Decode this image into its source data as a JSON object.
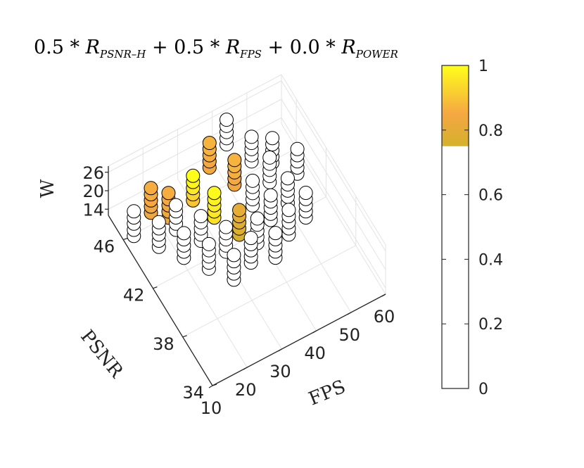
{
  "chart_data": {
    "type": "scatter",
    "title": {
      "parts": [
        {
          "coef": "0.5",
          "op": "*",
          "sym": "R",
          "sub": "PSNR–H"
        },
        {
          "coef": "0.5",
          "op": "*",
          "sym": "R",
          "sub": "FPS"
        },
        {
          "coef": "0.0",
          "op": "*",
          "sym": "R",
          "sub": "POWER"
        }
      ],
      "plus": "+"
    },
    "axes": {
      "x": {
        "label": "FPS",
        "range": [
          10,
          60
        ],
        "ticks": [
          10,
          20,
          30,
          40,
          50,
          60
        ]
      },
      "y": {
        "label": "PSNR",
        "range": [
          34,
          48
        ],
        "ticks": [
          34,
          38,
          42,
          46
        ]
      },
      "z": {
        "label": "W",
        "range": [
          12,
          28
        ],
        "ticks": [
          14,
          20,
          26
        ]
      }
    },
    "grid": true,
    "colorbar": {
      "location": "right",
      "range": [
        0,
        1
      ],
      "ticks": [
        "0",
        "0.2",
        "0.4",
        "0.6",
        "0.8",
        "1"
      ],
      "threshold": 0.75,
      "colors": {
        "low": "#ffffff",
        "mid": "#f5a742",
        "high": "#ffff1a",
        "floor": "#d4b12c"
      }
    },
    "marker": {
      "edge": "#000000",
      "fill_default": "#ffffff"
    },
    "columns": [
      {
        "fps": 12,
        "psnr": 45.5,
        "w": [
          14,
          16,
          18,
          20,
          22
        ],
        "score": [
          0.5,
          0.5,
          0.5,
          0.5,
          0.5
        ]
      },
      {
        "fps": 16,
        "psnr": 44.0,
        "w": [
          14,
          16,
          18,
          20,
          22
        ],
        "score": [
          0.5,
          0.5,
          0.5,
          0.5,
          0.5
        ]
      },
      {
        "fps": 20,
        "psnr": 42.5,
        "w": [
          14,
          16,
          18,
          20,
          22
        ],
        "score": [
          0.5,
          0.5,
          0.5,
          0.5,
          0.5
        ]
      },
      {
        "fps": 24,
        "psnr": 41.0,
        "w": [
          14,
          16,
          18,
          20,
          22
        ],
        "score": [
          0.5,
          0.5,
          0.5,
          0.5,
          0.5
        ]
      },
      {
        "fps": 28,
        "psnr": 39.5,
        "w": [
          14,
          16,
          18,
          20,
          22
        ],
        "score": [
          0.5,
          0.5,
          0.5,
          0.5,
          0.5
        ]
      },
      {
        "fps": 18,
        "psnr": 46.0,
        "w": [
          16,
          18,
          20,
          22,
          24
        ],
        "score": [
          0.83,
          0.84,
          0.85,
          0.86,
          0.86
        ]
      },
      {
        "fps": 22,
        "psnr": 44.5,
        "w": [
          14,
          16,
          18,
          20,
          22
        ],
        "score": [
          0.5,
          0.5,
          0.5,
          0.5,
          0.5
        ]
      },
      {
        "fps": 26,
        "psnr": 43.0,
        "w": [
          14,
          16,
          18,
          20,
          22
        ],
        "score": [
          0.5,
          0.5,
          0.5,
          0.5,
          0.5
        ]
      },
      {
        "fps": 30,
        "psnr": 41.5,
        "w": [
          14,
          16,
          18,
          20,
          22
        ],
        "score": [
          0.5,
          0.5,
          0.5,
          0.5,
          0.5
        ]
      },
      {
        "fps": 34,
        "psnr": 40.0,
        "w": [
          14,
          16,
          18,
          20,
          22
        ],
        "score": [
          0.5,
          0.5,
          0.5,
          0.5,
          0.5
        ]
      },
      {
        "fps": 22,
        "psnr": 45.5,
        "w": [
          14,
          16,
          18,
          20,
          22
        ],
        "score": [
          0.82,
          0.83,
          0.84,
          0.85,
          0.86
        ]
      },
      {
        "fps": 28,
        "psnr": 45.0,
        "w": [
          18,
          20,
          22,
          24,
          26
        ],
        "score": [
          0.9,
          0.93,
          0.96,
          0.98,
          1.0
        ]
      },
      {
        "fps": 32,
        "psnr": 44.0,
        "w": [
          14,
          16,
          18,
          20,
          22
        ],
        "score": [
          0.95,
          0.96,
          0.97,
          0.98,
          0.99
        ]
      },
      {
        "fps": 36,
        "psnr": 42.5,
        "w": [
          12,
          14,
          16,
          18,
          20
        ],
        "score": [
          0.76,
          0.77,
          0.78,
          0.79,
          0.8
        ]
      },
      {
        "fps": 38,
        "psnr": 41.0,
        "w": [
          14,
          16,
          18,
          20,
          22
        ],
        "score": [
          0.5,
          0.5,
          0.5,
          0.5,
          0.5
        ]
      },
      {
        "fps": 40,
        "psnr": 39.5,
        "w": [
          14,
          16,
          18,
          20,
          22
        ],
        "score": [
          0.5,
          0.5,
          0.5,
          0.5,
          0.5
        ]
      },
      {
        "fps": 36,
        "psnr": 46.5,
        "w": [
          18,
          20,
          22,
          24,
          26
        ],
        "score": [
          0.84,
          0.85,
          0.86,
          0.87,
          0.87
        ]
      },
      {
        "fps": 40,
        "psnr": 45.0,
        "w": [
          16,
          18,
          20,
          22,
          24
        ],
        "score": [
          0.84,
          0.85,
          0.86,
          0.87,
          0.87
        ]
      },
      {
        "fps": 42,
        "psnr": 43.5,
        "w": [
          14,
          16,
          18,
          20,
          22
        ],
        "score": [
          0.5,
          0.5,
          0.5,
          0.5,
          0.5
        ]
      },
      {
        "fps": 44,
        "psnr": 42.0,
        "w": [
          14,
          16,
          18,
          20,
          22
        ],
        "score": [
          0.5,
          0.5,
          0.5,
          0.5,
          0.5
        ]
      },
      {
        "fps": 46,
        "psnr": 40.5,
        "w": [
          14,
          16,
          18,
          20,
          22
        ],
        "score": [
          0.5,
          0.5,
          0.5,
          0.5,
          0.5
        ]
      },
      {
        "fps": 42,
        "psnr": 47.0,
        "w": [
          20,
          22,
          24,
          26,
          28
        ],
        "score": [
          0.5,
          0.5,
          0.5,
          0.5,
          0.5
        ]
      },
      {
        "fps": 46,
        "psnr": 45.5,
        "w": [
          18,
          20,
          22,
          24,
          26
        ],
        "score": [
          0.5,
          0.5,
          0.5,
          0.5,
          0.5
        ]
      },
      {
        "fps": 48,
        "psnr": 44.0,
        "w": [
          16,
          18,
          20,
          22,
          24
        ],
        "score": [
          0.5,
          0.5,
          0.5,
          0.5,
          0.5
        ]
      },
      {
        "fps": 50,
        "psnr": 42.5,
        "w": [
          14,
          16,
          18,
          20,
          22
        ],
        "score": [
          0.5,
          0.5,
          0.5,
          0.5,
          0.5
        ]
      },
      {
        "fps": 52,
        "psnr": 41.0,
        "w": [
          14,
          16,
          18,
          20,
          22
        ],
        "score": [
          0.5,
          0.5,
          0.5,
          0.5,
          0.5
        ]
      },
      {
        "fps": 52,
        "psnr": 45.5,
        "w": [
          14,
          16,
          18,
          20,
          22
        ],
        "score": [
          0.5,
          0.5,
          0.5,
          0.5,
          0.5
        ]
      },
      {
        "fps": 56,
        "psnr": 44.0,
        "w": [
          14,
          16,
          18,
          20,
          22
        ],
        "score": [
          0.5,
          0.5,
          0.5,
          0.5,
          0.5
        ]
      }
    ]
  }
}
